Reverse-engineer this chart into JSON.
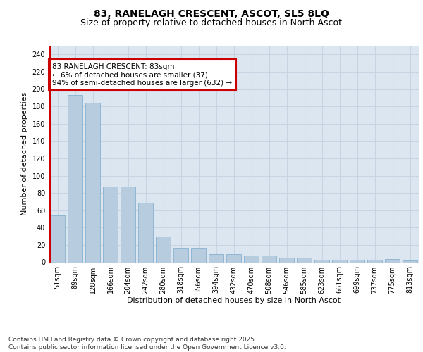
{
  "title_line1": "83, RANELAGH CRESCENT, ASCOT, SL5 8LQ",
  "title_line2": "Size of property relative to detached houses in North Ascot",
  "xlabel": "Distribution of detached houses by size in North Ascot",
  "ylabel": "Number of detached properties",
  "categories": [
    "51sqm",
    "89sqm",
    "128sqm",
    "166sqm",
    "204sqm",
    "242sqm",
    "280sqm",
    "318sqm",
    "356sqm",
    "394sqm",
    "432sqm",
    "470sqm",
    "508sqm",
    "546sqm",
    "585sqm",
    "623sqm",
    "661sqm",
    "699sqm",
    "737sqm",
    "775sqm",
    "813sqm"
  ],
  "values": [
    54,
    193,
    184,
    87,
    87,
    69,
    30,
    17,
    17,
    9,
    9,
    8,
    8,
    5,
    5,
    3,
    3,
    3,
    3,
    4,
    2
  ],
  "bar_color": "#b8ccdf",
  "bar_edge_color": "#7aaaca",
  "highlight_line_color": "#cc0000",
  "annotation_text": "83 RANELAGH CRESCENT: 83sqm\n← 6% of detached houses are smaller (37)\n94% of semi-detached houses are larger (632) →",
  "annotation_box_edge_color": "#cc0000",
  "ylim": [
    0,
    250
  ],
  "yticks": [
    0,
    20,
    40,
    60,
    80,
    100,
    120,
    140,
    160,
    180,
    200,
    220,
    240
  ],
  "grid_color": "#c8d4e4",
  "background_color": "#dce6f0",
  "footer_text": "Contains HM Land Registry data © Crown copyright and database right 2025.\nContains public sector information licensed under the Open Government Licence v3.0.",
  "title_fontsize": 10,
  "subtitle_fontsize": 9,
  "axis_label_fontsize": 8,
  "tick_fontsize": 7,
  "annotation_fontsize": 7.5,
  "footer_fontsize": 6.5
}
